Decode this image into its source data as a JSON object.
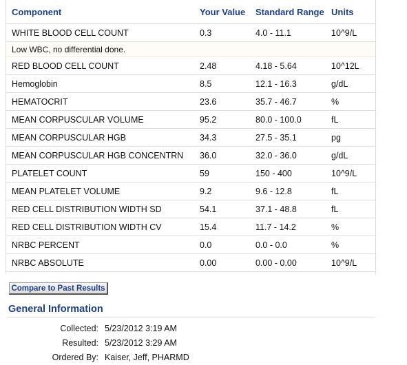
{
  "table": {
    "headers": {
      "component": "Component",
      "your_value": "Your Value",
      "standard_range": "Standard Range",
      "units": "Units"
    },
    "rows": [
      {
        "component": "WHITE BLOOD CELL COUNT",
        "value": "0.3",
        "range": "4.0 - 11.1",
        "units": "10^9/L",
        "comment": "Low WBC, no differential done."
      },
      {
        "component": "RED BLOOD CELL COUNT",
        "value": "2.48",
        "range": "4.18 - 5.64",
        "units": "10^12L"
      },
      {
        "component": "Hemoglobin",
        "value": "8.5",
        "range": "12.1 - 16.3",
        "units": "g/dL"
      },
      {
        "component": "HEMATOCRIT",
        "value": "23.6",
        "range": "35.7 - 46.7",
        "units": "%"
      },
      {
        "component": "MEAN CORPUSCULAR VOLUME",
        "value": "95.2",
        "range": "80.0 - 100.0",
        "units": "fL"
      },
      {
        "component": "MEAN CORPUSCULAR HGB",
        "value": "34.3",
        "range": "27.5 - 35.1",
        "units": "pg"
      },
      {
        "component": "MEAN CORPUSCULAR HGB CONCENTRN",
        "value": "36.0",
        "range": "32.0 - 36.0",
        "units": "g/dL"
      },
      {
        "component": "PLATELET COUNT",
        "value": "59",
        "range": "150 - 400",
        "units": "10^9/L"
      },
      {
        "component": "MEAN PLATELET VOLUME",
        "value": "9.2",
        "range": "9.6 - 12.8",
        "units": "fL"
      },
      {
        "component": "RED CELL DISTRIBUTION WIDTH SD",
        "value": "54.1",
        "range": "37.1 - 48.8",
        "units": "fL"
      },
      {
        "component": "RED CELL DISTRIBUTION WIDTH CV",
        "value": "15.4",
        "range": "11.7 - 14.2",
        "units": "%"
      },
      {
        "component": "NRBC PERCENT",
        "value": "0.0",
        "range": "0.0 - 0.0",
        "units": "%"
      },
      {
        "component": "NRBC ABSOLUTE",
        "value": "0.00",
        "range": "0.00 - 0.00",
        "units": "10^9/L"
      }
    ]
  },
  "compare_button": "Compare to Past Results",
  "general_info": {
    "title": "General Information",
    "collected_label": "Collected:",
    "collected_value": "5/23/2012  3:19 AM",
    "resulted_label": "Resulted:",
    "resulted_value": "5/23/2012  3:29 AM",
    "ordered_label": "Ordered By:",
    "ordered_value": "Kaiser, Jeff, PHARMD"
  },
  "colors": {
    "heading_blue": "#1e3f80",
    "comment_bg": "#fdfcf6",
    "rule_gray": "#dcdcdc"
  }
}
